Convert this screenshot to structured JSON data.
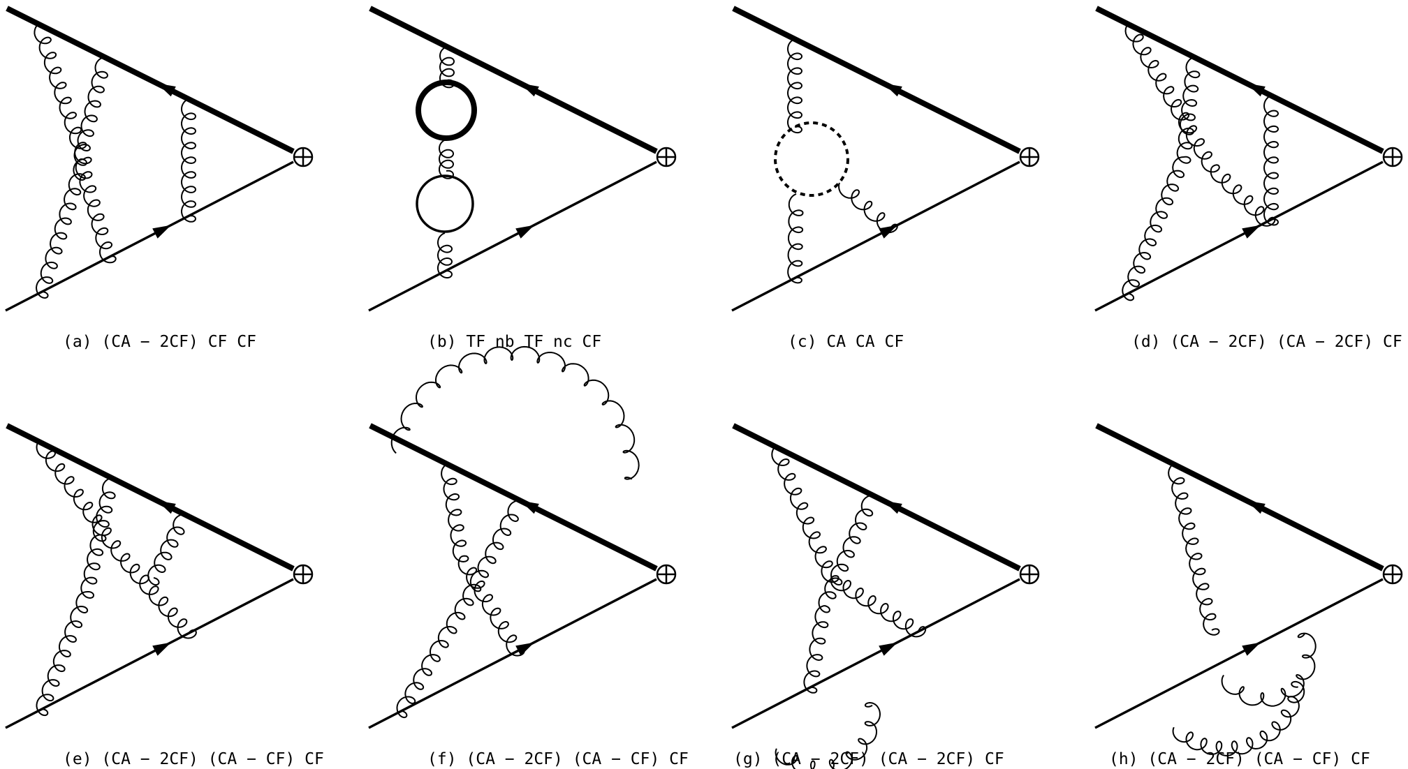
{
  "captions": [
    "(a)  (CA − 2CF) CF CF",
    "(b)  TF nb TF nc CF",
    "(c)  CA CA CF",
    "(d)  (CA − 2CF) (CA − 2CF) CF",
    "(e)  (CA − 2CF) (CA − CF) CF",
    "(f)  (CA − 2CF) (CA − CF) CF",
    "(g)  (CA − 2CF) (CA − 2CF) CF",
    "(h)  (CA − 2CF) (CA − CF) CF"
  ],
  "vertex_symbol": "⊕"
}
